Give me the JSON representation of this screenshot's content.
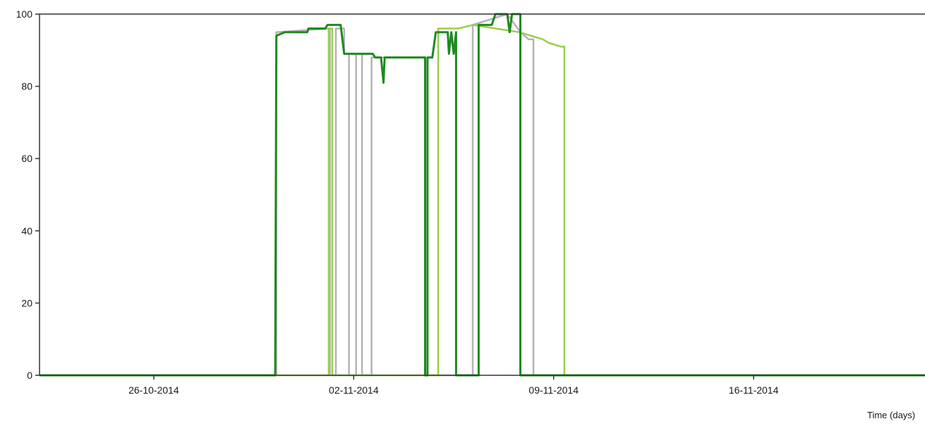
{
  "chart_data": {
    "type": "line",
    "title": "",
    "xlabel": "Time (days)",
    "ylabel": "",
    "xlim": [
      "2014-10-22",
      "2014-11-22"
    ],
    "ylim": [
      0,
      100
    ],
    "y_ticks": [
      0,
      20,
      40,
      60,
      80,
      100
    ],
    "x_ticks": [
      "26-10-2014",
      "02-11-2014",
      "09-11-2014",
      "16-11-2014"
    ],
    "x_tick_dates": [
      "2014-10-26",
      "2014-11-02",
      "2014-11-09",
      "2014-11-16"
    ],
    "grid": false,
    "legend": "none",
    "colors": {
      "axis": "#333333",
      "top_border": "#333333"
    },
    "series": [
      {
        "color": "#b3b3b3",
        "points": [
          [
            "2014-10-22",
            0
          ],
          [
            "2014-10-30 07:00",
            0
          ],
          [
            "2014-10-30 07:00",
            95
          ],
          [
            "2014-11-01 04:00",
            96
          ],
          [
            "2014-11-01 04:00",
            0
          ],
          [
            "2014-11-01 09:00",
            0
          ],
          [
            "2014-11-01 09:00",
            96
          ],
          [
            "2014-11-01 16:00",
            96
          ],
          [
            "2014-11-01 16:00",
            89
          ],
          [
            "2014-11-01 20:00",
            89
          ],
          [
            "2014-11-01 20:00",
            0
          ],
          [
            "2014-11-02 02:00",
            0
          ],
          [
            "2014-11-02 02:00",
            89
          ],
          [
            "2014-11-02 07:00",
            89
          ],
          [
            "2014-11-02 07:00",
            0
          ],
          [
            "2014-11-02 15:00",
            0
          ],
          [
            "2014-11-02 15:00",
            88
          ],
          [
            "2014-11-04 12:00",
            88
          ],
          [
            "2014-11-04 12:00",
            0
          ],
          [
            "2014-11-06 04:00",
            0
          ],
          [
            "2014-11-06 04:00",
            97
          ],
          [
            "2014-11-07 09:00",
            100
          ],
          [
            "2014-11-07 20:00",
            95
          ],
          [
            "2014-11-08 03:00",
            93
          ],
          [
            "2014-11-08 07:00",
            93
          ],
          [
            "2014-11-08 07:00",
            0
          ],
          [
            "2014-11-22",
            0
          ]
        ]
      },
      {
        "color": "#9acd4a",
        "points": [
          [
            "2014-10-22",
            0
          ],
          [
            "2014-11-01 03:00",
            0
          ],
          [
            "2014-11-01 03:00",
            96
          ],
          [
            "2014-11-01 06:00",
            96
          ],
          [
            "2014-11-01 06:00",
            0
          ],
          [
            "2014-11-04 23:00",
            0
          ],
          [
            "2014-11-04 23:00",
            96
          ],
          [
            "2014-11-05 06:00",
            96
          ],
          [
            "2014-11-05 16:00",
            96
          ],
          [
            "2014-11-06 04:00",
            97
          ],
          [
            "2014-11-07 19:00",
            95
          ],
          [
            "2014-11-08 05:00",
            94
          ],
          [
            "2014-11-08 15:00",
            93
          ],
          [
            "2014-11-08 20:00",
            92
          ],
          [
            "2014-11-09 06:00",
            91
          ],
          [
            "2014-11-09 09:00",
            91
          ],
          [
            "2014-11-09 09:00",
            0
          ],
          [
            "2014-11-22",
            0
          ]
        ]
      },
      {
        "color": "#1f8a1f",
        "points": [
          [
            "2014-10-22",
            0
          ],
          [
            "2014-10-30 06:00",
            0
          ],
          [
            "2014-10-30 07:00",
            94
          ],
          [
            "2014-10-30 14:00",
            95
          ],
          [
            "2014-10-31 09:00",
            95
          ],
          [
            "2014-10-31 10:00",
            96
          ],
          [
            "2014-11-01 00:00",
            96
          ],
          [
            "2014-11-01 02:00",
            97
          ],
          [
            "2014-11-01 13:00",
            97
          ],
          [
            "2014-11-01 16:00",
            89
          ],
          [
            "2014-11-02 16:00",
            89
          ],
          [
            "2014-11-02 18:00",
            88
          ],
          [
            "2014-11-02 23:00",
            88
          ],
          [
            "2014-11-03 01:00",
            81
          ],
          [
            "2014-11-03 02:00",
            88
          ],
          [
            "2014-11-04 12:00",
            88
          ],
          [
            "2014-11-04 12:00",
            0
          ],
          [
            "2014-11-04 14:00",
            0
          ],
          [
            "2014-11-04 14:00",
            88
          ],
          [
            "2014-11-04 18:00",
            88
          ],
          [
            "2014-11-04 21:00",
            95
          ],
          [
            "2014-11-05 07:00",
            95
          ],
          [
            "2014-11-05 08:00",
            89
          ],
          [
            "2014-11-05 10:00",
            95
          ],
          [
            "2014-11-05 12:00",
            89
          ],
          [
            "2014-11-05 14:00",
            95
          ],
          [
            "2014-11-05 14:00",
            0
          ],
          [
            "2014-11-06 09:00",
            0
          ],
          [
            "2014-11-06 09:00",
            97
          ],
          [
            "2014-11-06 20:00",
            97
          ],
          [
            "2014-11-06 23:00",
            100
          ],
          [
            "2014-11-07 09:00",
            100
          ],
          [
            "2014-11-07 11:00",
            95
          ],
          [
            "2014-11-07 13:00",
            100
          ],
          [
            "2014-11-07 20:00",
            100
          ],
          [
            "2014-11-07 20:00",
            0
          ],
          [
            "2014-11-22",
            0
          ]
        ]
      }
    ]
  }
}
